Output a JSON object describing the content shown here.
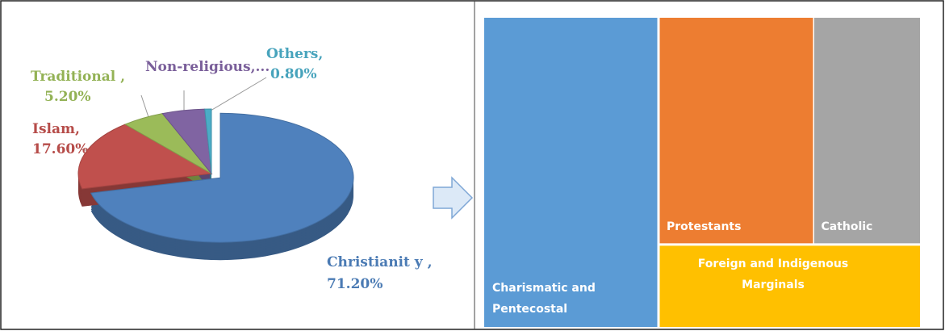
{
  "chart_data": [
    {
      "type": "pie",
      "categories": [
        "Christianit y ,",
        "Islam,",
        "Traditional ,",
        "Non-religious,...",
        "Others,"
      ],
      "values": [
        71.2,
        17.6,
        5.2,
        5.2,
        0.8
      ],
      "value_labels": [
        "71.20%",
        "17.60%",
        "5.20%",
        null,
        "0.80%"
      ],
      "colors": [
        "#4f81bd",
        "#c0504d",
        "#9bbb59",
        "#8064a2",
        "#4bacc6"
      ]
    },
    {
      "type": "treemap",
      "categories": [
        "Charismatic and Pentecostal",
        "Protestants",
        "Catholic",
        "Foreign and Indigenous Marginals"
      ],
      "values": [
        40,
        26,
        18,
        16
      ],
      "colors": [
        "#5b9bd5",
        "#ed7d31",
        "#a5a5a5",
        "#ffc000"
      ]
    }
  ]
}
